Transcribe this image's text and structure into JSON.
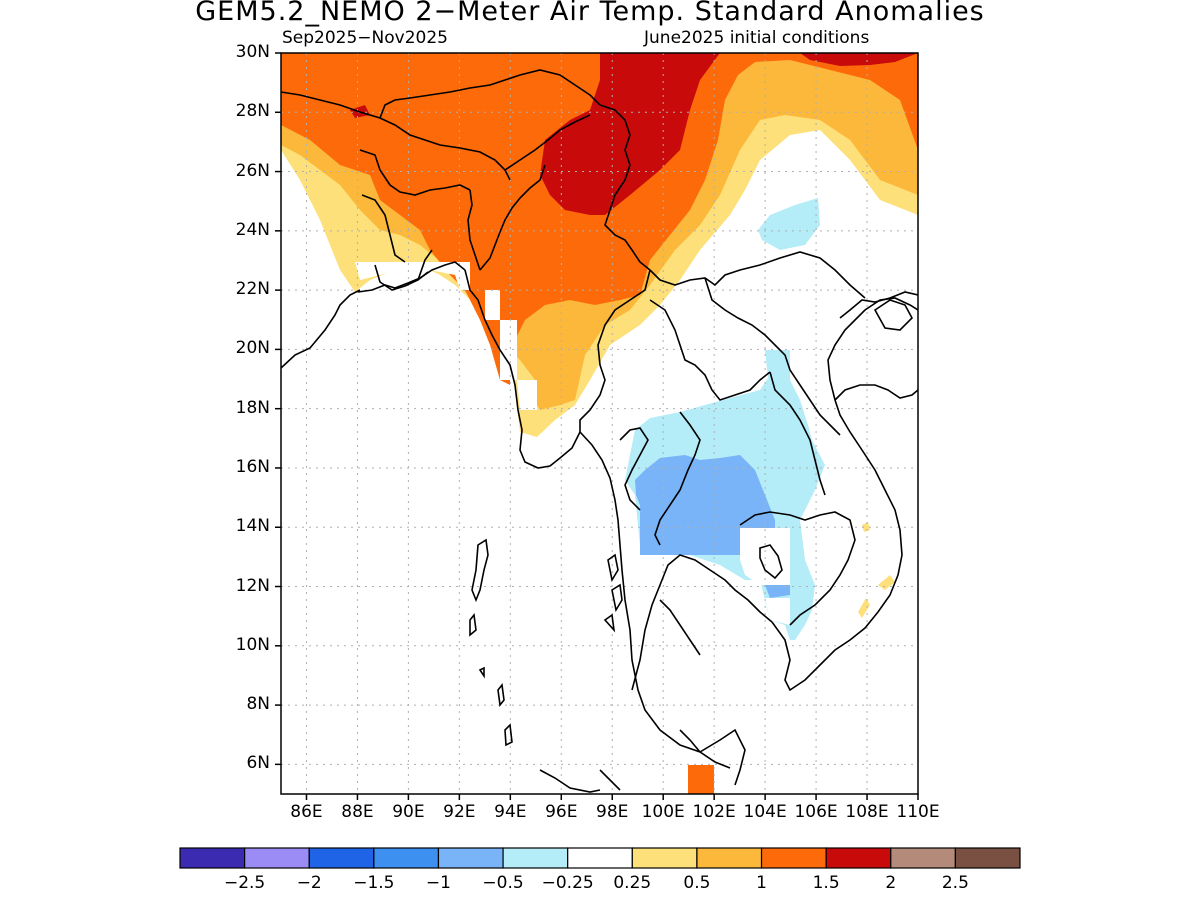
{
  "title": "GEM5.2_NEMO 2−Meter Air Temp. Standard Anomalies",
  "subtitle_left": "Sep2025−Nov2025",
  "subtitle_right": "June2025 initial conditions",
  "lat_labels": [
    "30N",
    "28N",
    "26N",
    "24N",
    "22N",
    "20N",
    "18N",
    "16N",
    "14N",
    "12N",
    "10N",
    "8N",
    "6N"
  ],
  "lon_labels": [
    "86E",
    "88E",
    "90E",
    "92E",
    "94E",
    "96E",
    "98E",
    "100E",
    "102E",
    "104E",
    "106E",
    "108E",
    "110E"
  ],
  "lat_values": [
    30,
    28,
    26,
    24,
    22,
    20,
    18,
    16,
    14,
    12,
    10,
    8,
    6
  ],
  "lon_values": [
    86,
    88,
    90,
    92,
    94,
    96,
    98,
    100,
    102,
    104,
    106,
    108,
    110
  ],
  "map_extent": {
    "lon": [
      85,
      110
    ],
    "lat": [
      5,
      30
    ]
  },
  "colorbar": {
    "colors": [
      "#3b2bb0",
      "#9b8cf5",
      "#1f64e6",
      "#3d90f0",
      "#78b4f7",
      "#b4ecf7",
      "#ffffff",
      "#fde07a",
      "#fcb83b",
      "#fc6a0a",
      "#c80a0a",
      "#b48a7a",
      "#7a5043"
    ],
    "labels": [
      "−2.5",
      "−2",
      "−1.5",
      "−1",
      "−0.5",
      "−0.25",
      "0.25",
      "0.5",
      "1",
      "1.5",
      "2",
      "2.5"
    ]
  },
  "anomaly_regions": [
    {
      "level": "0.5",
      "color": "#fde07a",
      "description": "NE India / Bangladesh / northern Myanmar margin"
    },
    {
      "level": "1",
      "color": "#fcb83b"
    },
    {
      "level": "1.5",
      "color": "#fc6a0a"
    },
    {
      "level": "2",
      "color": "#c80a0a",
      "description": "northern Myanmar / Yunnan"
    },
    {
      "level": "-0.25",
      "color": "#b4ecf7",
      "description": "Thailand / Cambodia / Laos, southern China patch"
    },
    {
      "level": "-0.5",
      "color": "#78b4f7",
      "description": "central Thailand"
    }
  ]
}
